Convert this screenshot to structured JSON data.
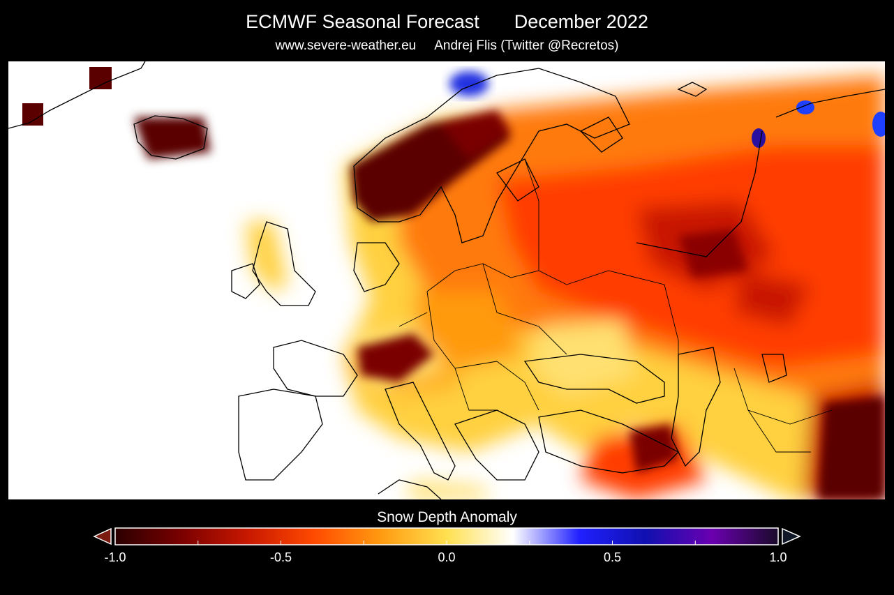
{
  "header": {
    "title_left": "ECMWF Seasonal Forecast",
    "title_right": "December 2022",
    "source_site": "www.severe-weather.eu",
    "author": "Andrej Flis (Twitter @Recretos)"
  },
  "colorbar": {
    "title": "Snow Depth Anomaly",
    "tick_labels": [
      "-1.0",
      "-0.5",
      "0.0",
      "0.5",
      "1.0"
    ],
    "range": [
      -1.0,
      1.0
    ],
    "extend": "both",
    "colors": [
      "#2b0000",
      "#7a0000",
      "#c81800",
      "#ff4a00",
      "#ff9a10",
      "#ffe050",
      "#ffffff",
      "#2020ff",
      "#1010b0",
      "#6a00b0",
      "#1a0a2a"
    ]
  }
}
